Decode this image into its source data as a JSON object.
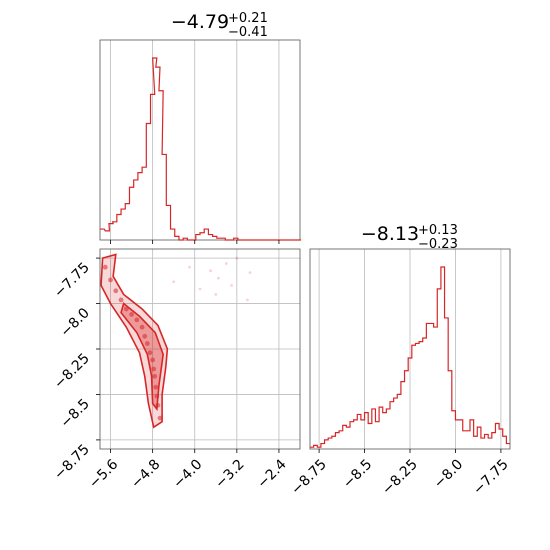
{
  "chart_data": [
    {
      "type": "histogram",
      "panel": "marginal-x",
      "title": {
        "median": "−4.79",
        "upper": "+0.21",
        "lower": "−0.41"
      },
      "xlim": [
        -5.8,
        -2.0
      ],
      "xticks": [
        -5.6,
        -4.8,
        -4.0,
        -3.2,
        -2.4
      ],
      "grid": true,
      "color": "#d62728",
      "bins": [
        {
          "x": -5.8,
          "y": 0.06
        },
        {
          "x": -5.7,
          "y": 0.05
        },
        {
          "x": -5.63,
          "y": 0.09
        },
        {
          "x": -5.56,
          "y": 0.1
        },
        {
          "x": -5.48,
          "y": 0.14
        },
        {
          "x": -5.4,
          "y": 0.17
        },
        {
          "x": -5.32,
          "y": 0.2
        },
        {
          "x": -5.24,
          "y": 0.29
        },
        {
          "x": -5.16,
          "y": 0.33
        },
        {
          "x": -5.08,
          "y": 0.37
        },
        {
          "x": -5.0,
          "y": 0.4
        },
        {
          "x": -4.92,
          "y": 0.64
        },
        {
          "x": -4.84,
          "y": 0.8
        },
        {
          "x": -4.8,
          "y": 1.0
        },
        {
          "x": -4.74,
          "y": 0.95
        },
        {
          "x": -4.68,
          "y": 0.82
        },
        {
          "x": -4.62,
          "y": 0.47
        },
        {
          "x": -4.54,
          "y": 0.19
        },
        {
          "x": -4.46,
          "y": 0.06
        },
        {
          "x": -4.38,
          "y": 0.02
        },
        {
          "x": -4.3,
          "y": 0.0
        },
        {
          "x": -4.22,
          "y": 0.01
        },
        {
          "x": -4.14,
          "y": 0.0
        },
        {
          "x": -4.06,
          "y": 0.0
        },
        {
          "x": -3.98,
          "y": 0.03
        },
        {
          "x": -3.9,
          "y": 0.04
        },
        {
          "x": -3.82,
          "y": 0.06
        },
        {
          "x": -3.74,
          "y": 0.03
        },
        {
          "x": -3.66,
          "y": 0.02
        },
        {
          "x": -3.58,
          "y": 0.01
        },
        {
          "x": -3.5,
          "y": 0.01
        },
        {
          "x": -3.42,
          "y": 0.0
        },
        {
          "x": -3.34,
          "y": 0.0
        },
        {
          "x": -3.26,
          "y": 0.01
        },
        {
          "x": -3.18,
          "y": 0.0
        },
        {
          "x": -3.1,
          "y": 0.0
        },
        {
          "x": -3.02,
          "y": 0.0
        },
        {
          "x": -2.94,
          "y": 0.0
        },
        {
          "x": -2.86,
          "y": 0.0
        },
        {
          "x": -2.78,
          "y": 0.0
        },
        {
          "x": -2.7,
          "y": 0.0
        },
        {
          "x": -2.62,
          "y": 0.0
        },
        {
          "x": -2.54,
          "y": 0.0
        },
        {
          "x": -2.46,
          "y": 0.0
        },
        {
          "x": -2.38,
          "y": 0.0
        },
        {
          "x": -2.3,
          "y": 0.0
        },
        {
          "x": -2.22,
          "y": 0.0
        },
        {
          "x": -2.14,
          "y": 0.0
        },
        {
          "x": -2.06,
          "y": 0.0
        }
      ],
      "bin_width": 0.08
    },
    {
      "type": "scatter",
      "panel": "joint",
      "xlim": [
        -5.8,
        -2.0
      ],
      "ylim": [
        -8.8,
        -7.7
      ],
      "xticks": [
        -5.6,
        -4.8,
        -4.0,
        -3.2,
        -2.4
      ],
      "yticks": [
        -7.75,
        -8.0,
        -8.25,
        -8.5,
        -8.75
      ],
      "grid": true,
      "color": "#d62728",
      "points": [
        [
          -5.7,
          -7.8
        ],
        [
          -5.6,
          -7.87
        ],
        [
          -5.5,
          -7.93
        ],
        [
          -5.4,
          -7.98
        ],
        [
          -5.3,
          -8.03
        ],
        [
          -5.2,
          -8.06
        ],
        [
          -5.1,
          -8.09
        ],
        [
          -5.0,
          -8.13
        ],
        [
          -4.95,
          -8.18
        ],
        [
          -4.9,
          -8.22
        ],
        [
          -4.85,
          -8.27
        ],
        [
          -4.8,
          -8.31
        ],
        [
          -4.78,
          -8.36
        ],
        [
          -4.76,
          -8.4
        ],
        [
          -4.74,
          -8.46
        ],
        [
          -4.72,
          -8.51
        ],
        [
          -4.7,
          -8.56
        ],
        [
          -4.66,
          -8.63
        ],
        [
          -3.2,
          -7.75
        ],
        [
          -3.4,
          -7.78
        ],
        [
          -3.7,
          -7.82
        ],
        [
          -2.95,
          -7.83
        ],
        [
          -4.1,
          -7.8
        ],
        [
          -3.9,
          -7.92
        ],
        [
          -3.6,
          -7.95
        ],
        [
          -3.0,
          -7.98
        ],
        [
          -4.4,
          -7.88
        ],
        [
          -3.3,
          -7.9
        ],
        [
          -3.55,
          -7.86
        ]
      ],
      "contours": [
        {
          "level": "outer",
          "path": [
            [
              -5.75,
              -7.75
            ],
            [
              -5.5,
              -7.73
            ],
            [
              -5.55,
              -7.85
            ],
            [
              -5.35,
              -7.95
            ],
            [
              -5.0,
              -8.03
            ],
            [
              -4.7,
              -8.12
            ],
            [
              -4.52,
              -8.25
            ],
            [
              -4.55,
              -8.35
            ],
            [
              -4.62,
              -8.5
            ],
            [
              -4.62,
              -8.65
            ],
            [
              -4.78,
              -8.68
            ],
            [
              -4.88,
              -8.55
            ],
            [
              -4.95,
              -8.4
            ],
            [
              -5.05,
              -8.27
            ],
            [
              -5.3,
              -8.13
            ],
            [
              -5.6,
              -8.0
            ],
            [
              -5.78,
              -7.9
            ],
            [
              -5.75,
              -7.75
            ]
          ]
        },
        {
          "level": "inner",
          "path": [
            [
              -5.35,
              -8.0
            ],
            [
              -5.05,
              -8.07
            ],
            [
              -4.75,
              -8.16
            ],
            [
              -4.6,
              -8.28
            ],
            [
              -4.68,
              -8.45
            ],
            [
              -4.72,
              -8.58
            ],
            [
              -4.8,
              -8.55
            ],
            [
              -4.82,
              -8.4
            ],
            [
              -4.9,
              -8.28
            ],
            [
              -5.1,
              -8.16
            ],
            [
              -5.4,
              -8.05
            ],
            [
              -5.35,
              -8.0
            ]
          ]
        }
      ]
    },
    {
      "type": "histogram",
      "panel": "marginal-y",
      "title": {
        "median": "−8.13",
        "upper": "+0.13",
        "lower": "−0.23"
      },
      "xlim": [
        -8.8,
        -7.7
      ],
      "xticks": [
        -8.75,
        -8.5,
        -8.25,
        -8.0,
        -7.75
      ],
      "grid": true,
      "color": "#d62728",
      "bins": [
        {
          "x": -8.8,
          "y": 0.01
        },
        {
          "x": -8.78,
          "y": 0.02
        },
        {
          "x": -8.76,
          "y": 0.01
        },
        {
          "x": -8.74,
          "y": 0.03
        },
        {
          "x": -8.72,
          "y": 0.05
        },
        {
          "x": -8.7,
          "y": 0.06
        },
        {
          "x": -8.68,
          "y": 0.07
        },
        {
          "x": -8.66,
          "y": 0.09
        },
        {
          "x": -8.64,
          "y": 0.1
        },
        {
          "x": -8.62,
          "y": 0.13
        },
        {
          "x": -8.6,
          "y": 0.12
        },
        {
          "x": -8.58,
          "y": 0.15
        },
        {
          "x": -8.56,
          "y": 0.16
        },
        {
          "x": -8.54,
          "y": 0.19
        },
        {
          "x": -8.52,
          "y": 0.16
        },
        {
          "x": -8.5,
          "y": 0.2
        },
        {
          "x": -8.48,
          "y": 0.14
        },
        {
          "x": -8.46,
          "y": 0.22
        },
        {
          "x": -8.44,
          "y": 0.15
        },
        {
          "x": -8.42,
          "y": 0.23
        },
        {
          "x": -8.4,
          "y": 0.2
        },
        {
          "x": -8.38,
          "y": 0.22
        },
        {
          "x": -8.36,
          "y": 0.26
        },
        {
          "x": -8.34,
          "y": 0.28
        },
        {
          "x": -8.32,
          "y": 0.3
        },
        {
          "x": -8.3,
          "y": 0.37
        },
        {
          "x": -8.28,
          "y": 0.43
        },
        {
          "x": -8.26,
          "y": 0.5
        },
        {
          "x": -8.24,
          "y": 0.57
        },
        {
          "x": -8.22,
          "y": 0.58
        },
        {
          "x": -8.2,
          "y": 0.59
        },
        {
          "x": -8.18,
          "y": 0.61
        },
        {
          "x": -8.16,
          "y": 0.69
        },
        {
          "x": -8.14,
          "y": 0.69
        },
        {
          "x": -8.12,
          "y": 0.67
        },
        {
          "x": -8.1,
          "y": 0.88
        },
        {
          "x": -8.08,
          "y": 1.0
        },
        {
          "x": -8.06,
          "y": 0.72
        },
        {
          "x": -8.04,
          "y": 0.43
        },
        {
          "x": -8.02,
          "y": 0.21
        },
        {
          "x": -8.0,
          "y": 0.16
        },
        {
          "x": -7.98,
          "y": 0.16
        },
        {
          "x": -7.96,
          "y": 0.1
        },
        {
          "x": -7.94,
          "y": 0.1
        },
        {
          "x": -7.92,
          "y": 0.16
        },
        {
          "x": -7.9,
          "y": 0.07
        },
        {
          "x": -7.88,
          "y": 0.12
        },
        {
          "x": -7.86,
          "y": 0.06
        },
        {
          "x": -7.84,
          "y": 0.08
        },
        {
          "x": -7.82,
          "y": 0.06
        },
        {
          "x": -7.8,
          "y": 0.09
        },
        {
          "x": -7.78,
          "y": 0.14
        },
        {
          "x": -7.76,
          "y": 0.11
        },
        {
          "x": -7.74,
          "y": 0.07
        },
        {
          "x": -7.72,
          "y": 0.03
        }
      ],
      "bin_width": 0.02
    }
  ]
}
